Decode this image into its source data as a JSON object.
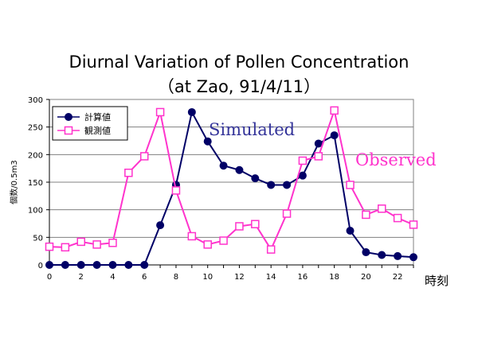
{
  "chart_data": {
    "type": "line",
    "title": "Diurnal Variation of Pollen Concentration",
    "subtitle": "（at Zao, 91/4/11）",
    "xlabel": "時刻",
    "ylabel": "個数/0.5m3",
    "xlim": [
      0,
      23
    ],
    "ylim": [
      0,
      300
    ],
    "xticks": [
      0,
      2,
      4,
      6,
      8,
      10,
      12,
      14,
      16,
      18,
      20,
      22
    ],
    "yticks": [
      0,
      50,
      100,
      150,
      200,
      250,
      300
    ],
    "x": [
      0,
      1,
      2,
      3,
      4,
      5,
      6,
      7,
      8,
      9,
      10,
      11,
      12,
      13,
      14,
      15,
      16,
      17,
      18,
      19,
      20,
      21,
      22,
      23
    ],
    "grid": "horizontal",
    "legend_position": "top-left",
    "series": [
      {
        "name": "計算値",
        "annotation": "Simulated",
        "color": "#000066",
        "annotation_color": "#333399",
        "marker": "filled-circle",
        "values": [
          0,
          0,
          0,
          0,
          0,
          0,
          0,
          72,
          145,
          277,
          224,
          180,
          172,
          157,
          145,
          145,
          162,
          220,
          235,
          62,
          23,
          18,
          16,
          14
        ]
      },
      {
        "name": "観測値",
        "annotation": "Observed",
        "color": "#ff33cc",
        "annotation_color": "#ff33cc",
        "marker": "open-square",
        "values": [
          33,
          32,
          42,
          37,
          40,
          167,
          197,
          277,
          135,
          52,
          37,
          44,
          70,
          74,
          28,
          93,
          189,
          197,
          280,
          145,
          91,
          102,
          85,
          73
        ]
      }
    ]
  }
}
